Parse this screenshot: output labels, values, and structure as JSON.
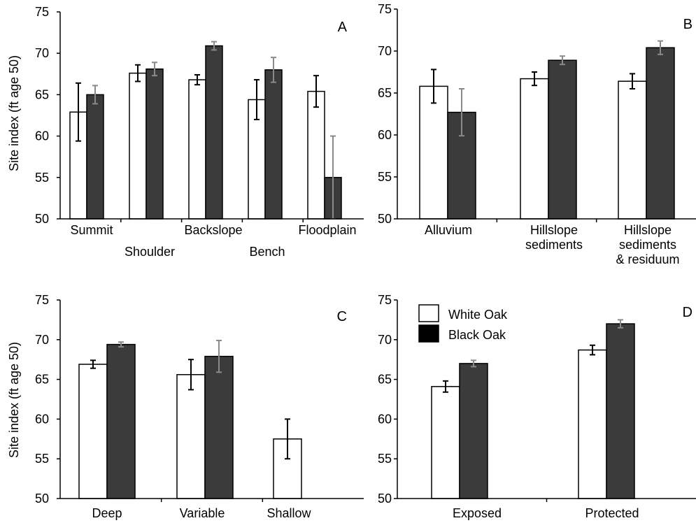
{
  "figure": {
    "ylabel_top": "Site index (ft age 50)",
    "ylabel_bottom": "Site index (ft age 50)"
  },
  "legend": {
    "white_label": "White Oak",
    "black_label": "Black Oak"
  },
  "colors": {
    "white_bar": "#ffffff",
    "black_bar": "#3b3b3b",
    "white_err": "#000000",
    "black_err": "#8a8a8a"
  },
  "chart_data": [
    {
      "panel": "A",
      "type": "bar",
      "ylim": [
        50,
        75
      ],
      "yticks": [
        50,
        55,
        60,
        65,
        70,
        75
      ],
      "categories": [
        "Summit",
        "Shoulder",
        "Backslope",
        "Bench",
        "Floodplain"
      ],
      "category_label_rows": [
        0,
        1,
        0,
        1,
        0
      ],
      "series": [
        {
          "name": "White Oak",
          "values": [
            62.9,
            67.6,
            66.8,
            64.4,
            65.4
          ],
          "errors": [
            3.5,
            1.0,
            0.6,
            2.4,
            1.9
          ]
        },
        {
          "name": "Black Oak",
          "values": [
            65.0,
            68.1,
            70.9,
            68.0,
            55.0
          ],
          "errors": [
            1.1,
            0.8,
            0.5,
            1.5,
            5.0
          ]
        }
      ]
    },
    {
      "panel": "B",
      "type": "bar",
      "ylim": [
        50,
        75
      ],
      "yticks": [
        50,
        55,
        60,
        65,
        70,
        75
      ],
      "categories": [
        "Alluvium",
        "Hillslope\nsediments",
        "Hillslope\nsediments\n& residuum"
      ],
      "series": [
        {
          "name": "White Oak",
          "values": [
            65.8,
            66.7,
            66.4
          ],
          "errors": [
            2.0,
            0.8,
            0.9
          ]
        },
        {
          "name": "Black Oak",
          "values": [
            62.7,
            68.9,
            70.4
          ],
          "errors": [
            2.8,
            0.5,
            0.8
          ]
        }
      ]
    },
    {
      "panel": "C",
      "type": "bar",
      "ylim": [
        50,
        75
      ],
      "yticks": [
        50,
        55,
        60,
        65,
        70,
        75
      ],
      "categories": [
        "Deep",
        "Variable",
        "Shallow"
      ],
      "series": [
        {
          "name": "White Oak",
          "values": [
            66.9,
            65.6,
            57.5
          ],
          "errors": [
            0.5,
            1.9,
            2.5
          ]
        },
        {
          "name": "Black Oak",
          "values": [
            69.4,
            67.9,
            null
          ],
          "errors": [
            0.3,
            2.0,
            null
          ]
        }
      ]
    },
    {
      "panel": "D",
      "type": "bar",
      "ylim": [
        50,
        75
      ],
      "yticks": [
        50,
        55,
        60,
        65,
        70,
        75
      ],
      "categories": [
        "Exposed",
        "Protected"
      ],
      "series": [
        {
          "name": "White Oak",
          "values": [
            64.1,
            68.7
          ],
          "errors": [
            0.7,
            0.6
          ]
        },
        {
          "name": "Black Oak",
          "values": [
            67.0,
            72.0
          ],
          "errors": [
            0.4,
            0.5
          ]
        }
      ]
    }
  ]
}
